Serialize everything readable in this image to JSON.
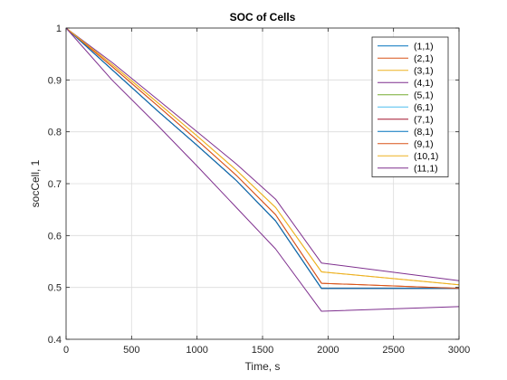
{
  "chart_data": {
    "type": "line",
    "title": "SOC of Cells",
    "xlabel": "Time, s",
    "ylabel": "socCell, 1",
    "xlim": [
      0,
      3000
    ],
    "ylim": [
      0.4,
      1
    ],
    "xticks": [
      0,
      500,
      1000,
      1500,
      2000,
      2500,
      3000
    ],
    "yticks": [
      0.4,
      0.5,
      0.6,
      0.7,
      0.8,
      0.9,
      1
    ],
    "xtick_labels": [
      "0",
      "500",
      "1000",
      "1500",
      "2000",
      "2500",
      "3000"
    ],
    "ytick_labels": [
      "0.4",
      "0.5",
      "0.6",
      "0.7",
      "0.8",
      "0.9",
      "1"
    ],
    "grid": true,
    "legend_position": "top-right",
    "series": [
      {
        "name": "(1,1)",
        "color": "#0072BD",
        "x": [
          0,
          350,
          700,
          1000,
          1300,
          1600,
          1950,
          3000
        ],
        "y": [
          1,
          0.92,
          0.84,
          0.774,
          0.706,
          0.628,
          0.498,
          0.498
        ]
      },
      {
        "name": "(2,1)",
        "color": "#D95319",
        "x": [
          0,
          350,
          700,
          1000,
          1300,
          1600,
          1950,
          3000
        ],
        "y": [
          1,
          0.926,
          0.85,
          0.784,
          0.716,
          0.64,
          0.508,
          0.498
        ]
      },
      {
        "name": "(3,1)",
        "color": "#EDB120",
        "x": [
          0,
          350,
          700,
          1000,
          1300,
          1600,
          1950,
          3000
        ],
        "y": [
          1,
          0.93,
          0.856,
          0.792,
          0.726,
          0.654,
          0.53,
          0.505
        ]
      },
      {
        "name": "(4,1)",
        "color": "#7E2F8E",
        "x": [
          0,
          350,
          700,
          1000,
          1300,
          1600,
          1950,
          3000
        ],
        "y": [
          1,
          0.934,
          0.862,
          0.8,
          0.738,
          0.67,
          0.547,
          0.513
        ]
      },
      {
        "name": "(5,1)",
        "color": "#77AC30",
        "x": [
          0,
          350,
          700,
          1000,
          1300,
          1600,
          1950,
          3000
        ],
        "y": [
          1,
          0.92,
          0.84,
          0.774,
          0.706,
          0.628,
          0.498,
          0.498
        ]
      },
      {
        "name": "(6,1)",
        "color": "#4DBEEE",
        "x": [
          0,
          350,
          700,
          1000,
          1300,
          1600,
          1950,
          3000
        ],
        "y": [
          1,
          0.92,
          0.84,
          0.774,
          0.706,
          0.628,
          0.498,
          0.498
        ]
      },
      {
        "name": "(7,1)",
        "color": "#A2142F",
        "x": [
          0,
          350,
          700,
          1000,
          1300,
          1600,
          1950,
          3000
        ],
        "y": [
          1,
          0.92,
          0.84,
          0.774,
          0.706,
          0.628,
          0.498,
          0.498
        ]
      },
      {
        "name": "(8,1)",
        "color": "#0072BD",
        "x": [
          0,
          350,
          700,
          1000,
          1300,
          1600,
          1950,
          3000
        ],
        "y": [
          1,
          0.92,
          0.84,
          0.774,
          0.706,
          0.628,
          0.498,
          0.498
        ]
      },
      {
        "name": "(9,1)",
        "color": "#D95319",
        "x": [
          0,
          350,
          700,
          1000,
          1300,
          1600,
          1950,
          3000
        ],
        "y": [
          1,
          0.926,
          0.85,
          0.784,
          0.716,
          0.64,
          0.508,
          0.498
        ]
      },
      {
        "name": "(10,1)",
        "color": "#EDB120",
        "x": [
          0,
          350,
          700,
          1000,
          1300,
          1600,
          1950,
          3000
        ],
        "y": [
          1,
          0.93,
          0.856,
          0.792,
          0.726,
          0.654,
          0.53,
          0.505
        ]
      },
      {
        "name": "(11,1)",
        "color": "#7E2F8E",
        "x": [
          0,
          350,
          700,
          1000,
          1300,
          1600,
          1950,
          3000
        ],
        "y": [
          1,
          0.9,
          0.812,
          0.734,
          0.654,
          0.574,
          0.454,
          0.463
        ]
      }
    ]
  }
}
